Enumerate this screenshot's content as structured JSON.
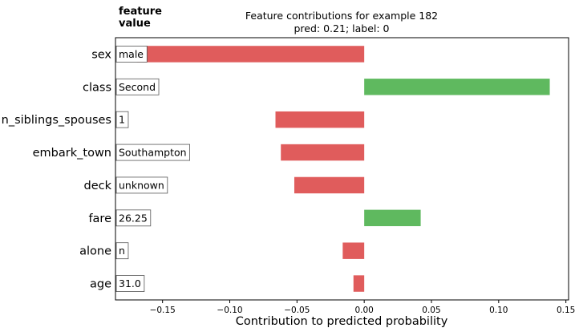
{
  "chart_data": {
    "type": "bar",
    "orientation": "horizontal",
    "title_line1": "Feature contributions for example 182",
    "title_line2": "pred: 0.21; label: 0",
    "feature_header_line1": "feature",
    "feature_header_line2": "value",
    "xlabel": "Contribution to predicted probability",
    "xlim": [
      -0.185,
      0.152
    ],
    "xticks": [
      -0.15,
      -0.1,
      -0.05,
      0.0,
      0.05,
      0.1,
      0.15
    ],
    "xtick_labels": [
      "−0.15",
      "−0.10",
      "−0.05",
      "0.00",
      "0.05",
      "0.10",
      "0.15"
    ],
    "grid": false,
    "colors": {
      "positive": "#5fb95f",
      "negative": "#e05c5c"
    },
    "rows": [
      {
        "feature": "sex",
        "value": "male",
        "contribution": -0.169
      },
      {
        "feature": "class",
        "value": "Second",
        "contribution": 0.138
      },
      {
        "feature": "n_siblings_spouses",
        "value": "1",
        "contribution": -0.066
      },
      {
        "feature": "embark_town",
        "value": "Southampton",
        "contribution": -0.062
      },
      {
        "feature": "deck",
        "value": "unknown",
        "contribution": -0.052
      },
      {
        "feature": "fare",
        "value": "26.25",
        "contribution": 0.042
      },
      {
        "feature": "alone",
        "value": "n",
        "contribution": -0.016
      },
      {
        "feature": "age",
        "value": "31.0",
        "contribution": -0.008
      }
    ]
  }
}
